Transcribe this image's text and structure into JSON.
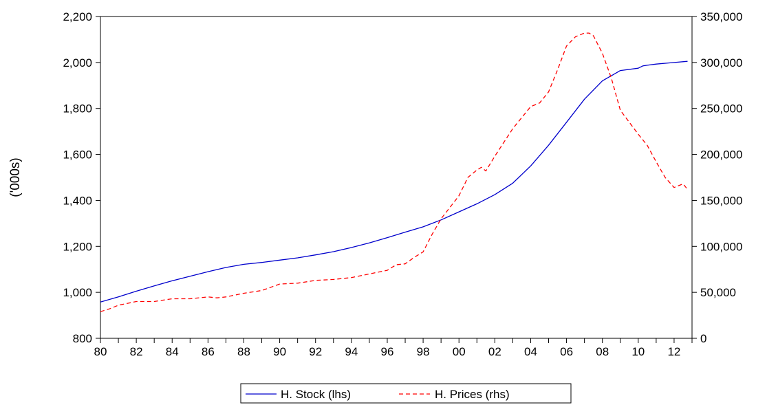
{
  "chart_data": {
    "type": "line",
    "title": "",
    "xlabel": "",
    "ylabel": "('000s)",
    "ylabel_right": "",
    "x_tick_labels": [
      "80",
      "82",
      "84",
      "86",
      "88",
      "90",
      "92",
      "94",
      "96",
      "98",
      "00",
      "02",
      "04",
      "06",
      "08",
      "10",
      "12"
    ],
    "x_tick_years": [
      1980,
      1982,
      1984,
      1986,
      1988,
      1990,
      1992,
      1994,
      1996,
      1998,
      2000,
      2002,
      2004,
      2006,
      2008,
      2010,
      2012
    ],
    "xlim": [
      1980,
      2013
    ],
    "ylim_left": [
      800,
      2200
    ],
    "ylim_right": [
      0,
      350000
    ],
    "y_left_ticks": [
      800,
      1000,
      1200,
      1400,
      1600,
      1800,
      2000,
      2200
    ],
    "y_left_tick_labels": [
      "800",
      "1,000",
      "1,200",
      "1,400",
      "1,600",
      "1,800",
      "2,000",
      "2,200"
    ],
    "y_right_ticks": [
      0,
      50000,
      100000,
      150000,
      200000,
      250000,
      300000,
      350000
    ],
    "y_right_tick_labels": [
      "0",
      "50,000",
      "100,000",
      "150,000",
      "200,000",
      "250,000",
      "300,000",
      "350,000"
    ],
    "grid": false,
    "legend_position": "bottom-center",
    "series": [
      {
        "name": "H. Stock (lhs)",
        "axis": "left",
        "color": "#0000cc",
        "style": "solid",
        "x": [
          1980,
          1981,
          1982,
          1983,
          1984,
          1985,
          1986,
          1987,
          1988,
          1989,
          1990,
          1991,
          1992,
          1993,
          1994,
          1995,
          1996,
          1997,
          1998,
          1999,
          2000,
          2001,
          2002,
          2003,
          2004,
          2005,
          2006,
          2007,
          2008,
          2009,
          2010,
          2010.25,
          2010.5,
          2011,
          2012,
          2012.75
        ],
        "values": [
          958,
          980,
          1005,
          1028,
          1050,
          1070,
          1090,
          1108,
          1122,
          1130,
          1140,
          1150,
          1163,
          1177,
          1195,
          1215,
          1238,
          1262,
          1285,
          1315,
          1350,
          1385,
          1425,
          1475,
          1550,
          1640,
          1740,
          1840,
          1920,
          1965,
          1975,
          1985,
          1988,
          1993,
          2000,
          2005
        ]
      },
      {
        "name": "H. Prices (rhs)",
        "axis": "right",
        "color": "#ff0000",
        "style": "dashed",
        "x": [
          1980,
          1980.5,
          1981,
          1981.5,
          1982,
          1983,
          1984,
          1985,
          1986,
          1986.5,
          1987,
          1988,
          1989,
          1990,
          1991,
          1992,
          1993,
          1994,
          1995,
          1996,
          1996.5,
          1997,
          1997.5,
          1998,
          1998.5,
          1999,
          2000,
          2000.5,
          2001,
          2001.25,
          2001.5,
          2002,
          2003,
          2004,
          2004.5,
          2005,
          2005.5,
          2006,
          2006.5,
          2007,
          2007.25,
          2007.5,
          2008,
          2008.5,
          2009,
          2009.5,
          2010,
          2010.5,
          2011,
          2011.5,
          2012,
          2012.5,
          2012.75
        ],
        "values": [
          29000,
          32000,
          36000,
          38000,
          40000,
          40000,
          43000,
          43000,
          45000,
          44000,
          45000,
          49000,
          52000,
          59000,
          60000,
          63000,
          64000,
          66000,
          70000,
          74000,
          80000,
          81000,
          88000,
          94000,
          113000,
          130000,
          155000,
          175000,
          183000,
          186000,
          182000,
          198000,
          228000,
          252000,
          256000,
          268000,
          292000,
          318000,
          328000,
          332000,
          332000,
          329000,
          310000,
          283000,
          248000,
          235000,
          222000,
          210000,
          192000,
          175000,
          164000,
          168000,
          162000
        ]
      }
    ]
  }
}
